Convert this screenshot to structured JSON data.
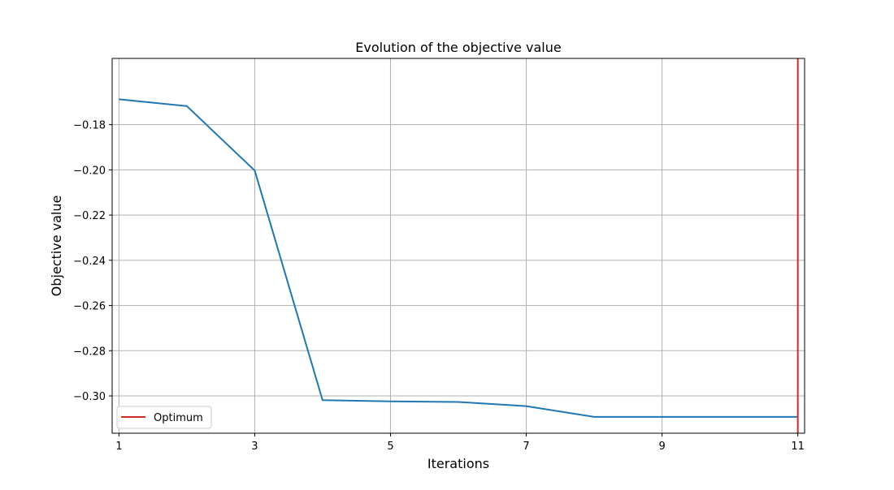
{
  "chart_data": {
    "type": "line",
    "title": "Evolution of the objective value",
    "xlabel": "Iterations",
    "ylabel": "Objective value",
    "x": [
      1,
      2,
      3,
      4,
      5,
      6,
      7,
      8,
      9,
      10,
      11
    ],
    "series": [
      {
        "values": [
          -0.1688,
          -0.1718,
          -0.2003,
          -0.3019,
          -0.3024,
          -0.3027,
          -0.3045,
          -0.3093,
          -0.3093,
          -0.3093,
          -0.3093
        ],
        "color": "#1f77b4"
      }
    ],
    "vlines": [
      {
        "name": "Optimum",
        "x": 11,
        "color": "#d62728"
      }
    ],
    "xlim": [
      0.9,
      11.1
    ],
    "ylim": [
      -0.3165,
      -0.1507
    ],
    "xticks": [
      1,
      3,
      5,
      7,
      9,
      11
    ],
    "xtick_labels": [
      "1",
      "3",
      "5",
      "7",
      "9",
      "11"
    ],
    "yticks": [
      -0.18,
      -0.2,
      -0.22,
      -0.24,
      -0.26,
      -0.28,
      -0.3
    ],
    "ytick_labels": [
      "−0.18",
      "−0.20",
      "−0.22",
      "−0.24",
      "−0.26",
      "−0.28",
      "−0.30"
    ],
    "grid": true,
    "legend": {
      "placement": "lower-left",
      "entries": [
        "Optimum"
      ]
    }
  }
}
